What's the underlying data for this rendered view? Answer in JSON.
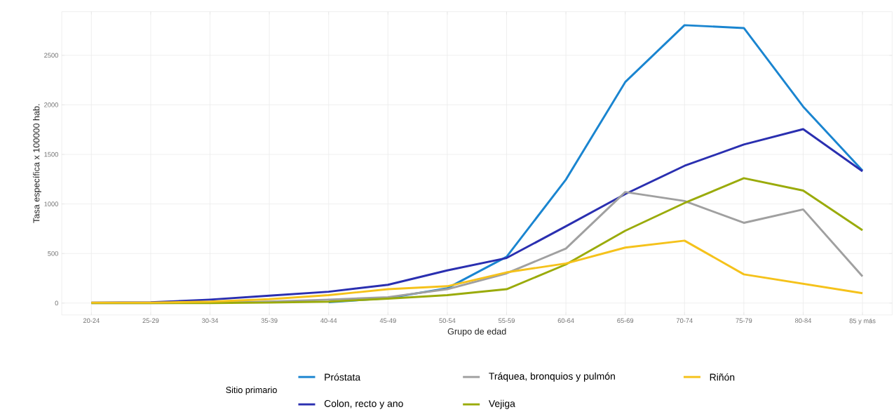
{
  "chart_data": {
    "type": "line",
    "xlabel": "Grupo de edad",
    "ylabel": "Tasa específica x 100000 hab.",
    "legend_title": "Sitio primario",
    "legend": "bottom",
    "grid": true,
    "categories": [
      "20-24",
      "25-29",
      "30-34",
      "35-39",
      "40-44",
      "45-49",
      "50-54",
      "55-59",
      "60-64",
      "65-69",
      "70-74",
      "75-79",
      "80-84",
      "85 y más"
    ],
    "ylim": [
      -120,
      2940
    ],
    "yticks": [
      0,
      500,
      1000,
      1500,
      2000,
      2500
    ],
    "series": [
      {
        "name": "Próstata",
        "color": "#1a85d0",
        "values": [
          null,
          null,
          null,
          null,
          10,
          50,
          150,
          467,
          1246,
          2230,
          2804,
          2775,
          1982,
          1338
        ]
      },
      {
        "name": "Colon, recto y ano",
        "color": "#2a2fb0",
        "values": [
          5,
          8,
          35,
          75,
          115,
          185,
          330,
          455,
          775,
          1100,
          1385,
          1600,
          1755,
          1330
        ]
      },
      {
        "name": "Tráquea, bronquios y pulmón",
        "color": "#a0a0a0",
        "values": [
          0,
          0,
          5,
          15,
          35,
          60,
          140,
          300,
          550,
          1120,
          1030,
          810,
          945,
          270
        ]
      },
      {
        "name": "Vejiga",
        "color": "#9aab0a",
        "values": [
          0,
          0,
          0,
          5,
          15,
          45,
          80,
          140,
          390,
          730,
          1010,
          1260,
          1135,
          735
        ]
      },
      {
        "name": "Riñón",
        "color": "#f5c21b",
        "values": [
          5,
          5,
          15,
          40,
          80,
          140,
          170,
          310,
          400,
          560,
          630,
          290,
          195,
          100
        ]
      }
    ]
  }
}
